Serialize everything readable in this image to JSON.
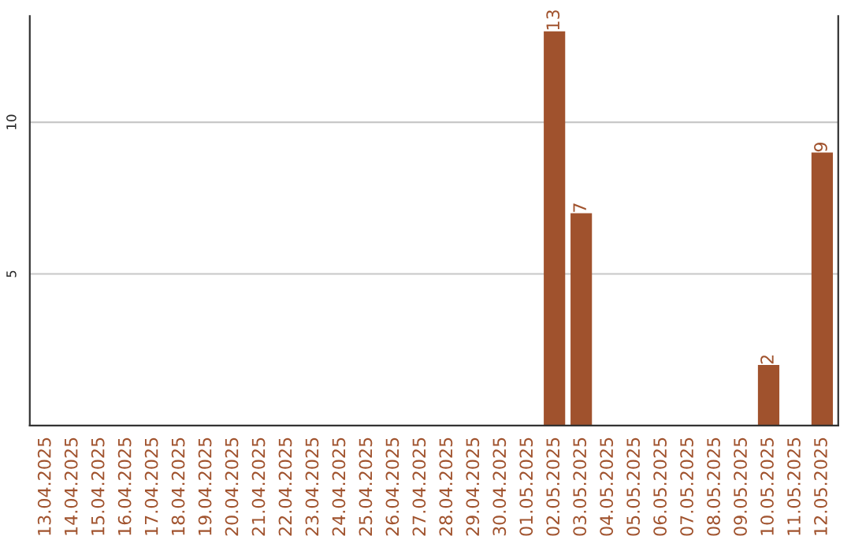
{
  "chart_data": {
    "type": "bar",
    "categories": [
      "13.04.2025",
      "14.04.2025",
      "15.04.2025",
      "16.04.2025",
      "17.04.2025",
      "18.04.2025",
      "19.04.2025",
      "20.04.2025",
      "21.04.2025",
      "22.04.2025",
      "23.04.2025",
      "24.04.2025",
      "25.04.2025",
      "26.04.2025",
      "27.04.2025",
      "28.04.2025",
      "29.04.2025",
      "30.04.2025",
      "01.05.2025",
      "02.05.2025",
      "03.05.2025",
      "04.05.2025",
      "05.05.2025",
      "06.05.2025",
      "07.05.2025",
      "08.05.2025",
      "09.05.2025",
      "10.05.2025",
      "11.05.2025",
      "12.05.2025"
    ],
    "values": [
      null,
      null,
      null,
      null,
      null,
      null,
      null,
      null,
      null,
      null,
      null,
      null,
      null,
      null,
      null,
      null,
      null,
      null,
      null,
      13,
      7,
      null,
      null,
      null,
      null,
      null,
      null,
      2,
      null,
      9
    ],
    "value_labels": [
      null,
      null,
      null,
      null,
      null,
      null,
      null,
      null,
      null,
      null,
      null,
      null,
      null,
      null,
      null,
      null,
      null,
      null,
      null,
      "13",
      "7",
      null,
      null,
      null,
      null,
      null,
      null,
      "2",
      null,
      "9"
    ],
    "color": "#a0522d",
    "ylim": [
      0,
      13.5
    ],
    "yticks": [
      5,
      10
    ],
    "grid": "y",
    "legend": false
  }
}
